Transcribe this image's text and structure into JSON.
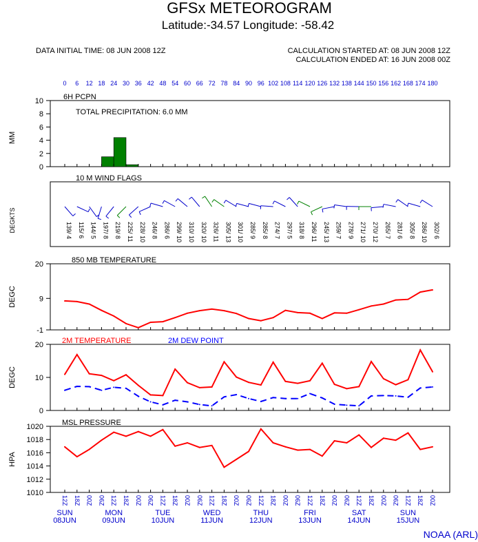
{
  "title": "GFSx METEOROGRAM",
  "subtitle": "Latitude:-34.57 Longitude: -58.42",
  "header": {
    "init": "DATA INITIAL TIME: 08 JUN 2008 12Z",
    "calc_start": "CALCULATION STARTED AT: 08 JUN 2008 12Z",
    "calc_end": "CALCULATION ENDED AT: 16 JUN 2008 00Z"
  },
  "footer": {
    "credit": "NOAA (ARL)"
  },
  "colors": {
    "temp": "#ff0000",
    "dew": "#0000ff",
    "precip": "#008000",
    "hour_labels": "#0000cc"
  },
  "chart_data": [
    {
      "type": "bar",
      "panel": "precipitation",
      "title": "6H PCPN",
      "annotation": "TOTAL PRECIPITATION:   6.0 MM",
      "ylabel": "MM",
      "ylim": [
        0,
        10
      ],
      "yticks": [
        0,
        2,
        4,
        6,
        8,
        10
      ],
      "x": [
        24,
        30,
        36
      ],
      "values": [
        1.5,
        4.4,
        0.3
      ]
    },
    {
      "type": "table",
      "panel": "wind",
      "title": "10 M  WIND FLAGS",
      "ylabel": "DEGKTS",
      "values": [
        "139/ 4",
        "115/ 6",
        "144/ 5",
        "197/ 8",
        "219/ 8",
        "225/ 11",
        "228/ 10",
        "246/ 8",
        "286/ 6",
        "299/ 10",
        "310/ 10",
        "320/ 10",
        "326/ 11",
        "305/ 13",
        "301/ 10",
        "285/ 9",
        "285/ 8",
        "274/ 7",
        "297/ 5",
        "318/ 8",
        "296/ 11",
        "245/ 13",
        "259/ 7",
        "278/ 9",
        "271/ 10",
        "270/ 12",
        "265/ 7",
        "281/ 6",
        "305/ 8",
        "286/ 10",
        "302/ 6"
      ]
    },
    {
      "type": "line",
      "panel": "temp850",
      "title": "850 MB  TEMPERATURE",
      "ylabel": "DEGC",
      "ylim": [
        -1,
        20
      ],
      "yticks": [
        -1,
        9,
        20
      ],
      "series": [
        {
          "values": [
            8.2,
            8.0,
            7.2,
            5.2,
            3.4,
            1.0,
            -0.3,
            1.4,
            1.6,
            2.9,
            4.3,
            5.1,
            5.6,
            5.1,
            4.2,
            2.6,
            1.9,
            2.9,
            5.2,
            4.5,
            4.3,
            2.6,
            4.4,
            4.3,
            5.4,
            6.6,
            7.2,
            8.5,
            8.7,
            11.0,
            11.7
          ]
        }
      ]
    },
    {
      "type": "line",
      "panel": "temp2m",
      "ylabel": "DEGC",
      "ylim": [
        0,
        20
      ],
      "yticks": [
        0,
        10,
        20
      ],
      "series": [
        {
          "name": "2M TEMPERATURE",
          "values": [
            10.9,
            16.9,
            11.1,
            10.6,
            9.0,
            10.8,
            7.6,
            4.7,
            4.5,
            12.5,
            8.4,
            6.9,
            7.1,
            14.7,
            10.1,
            8.5,
            7.7,
            14.6,
            8.8,
            8.2,
            9.0,
            14.3,
            7.9,
            6.6,
            7.2,
            14.8,
            9.6,
            7.8,
            9.3,
            18.3,
            11.7
          ]
        },
        {
          "name": "2M   DEW POINT",
          "values": [
            6.1,
            7.3,
            7.2,
            6.1,
            7.0,
            6.7,
            4.3,
            2.6,
            1.7,
            3.1,
            2.6,
            1.8,
            1.4,
            4.1,
            4.8,
            3.6,
            2.7,
            3.9,
            3.6,
            3.6,
            5.1,
            3.8,
            1.9,
            1.6,
            1.4,
            4.4,
            4.5,
            4.4,
            4.0,
            6.8,
            7.1
          ]
        }
      ]
    },
    {
      "type": "line",
      "panel": "pressure",
      "title": "MSL PRESSURE",
      "ylabel": "HPA",
      "ylim": [
        1010,
        1020
      ],
      "yticks": [
        1010,
        1012,
        1014,
        1016,
        1018,
        1020
      ],
      "series": [
        {
          "values": [
            1016.9,
            1015.4,
            1016.5,
            1017.9,
            1019.1,
            1018.5,
            1019.2,
            1018.5,
            1019.5,
            1017.0,
            1017.5,
            1016.8,
            1017.1,
            1013.8,
            1015.0,
            1016.2,
            1019.6,
            1017.5,
            1016.9,
            1016.4,
            1016.5,
            1015.5,
            1017.8,
            1017.5,
            1018.7,
            1016.8,
            1018.2,
            1017.9,
            1019.0,
            1016.5,
            1016.9
          ]
        }
      ]
    }
  ],
  "axis": {
    "hours": [
      "0",
      "6",
      "12",
      "18",
      "24",
      "30",
      "36",
      "42",
      "48",
      "54",
      "60",
      "66",
      "72",
      "78",
      "84",
      "90",
      "96",
      "102",
      "108",
      "114",
      "120",
      "126",
      "132",
      "138",
      "144",
      "150",
      "156",
      "162",
      "168",
      "174",
      "180"
    ],
    "times": [
      "12Z",
      "18Z",
      "00Z",
      "06Z",
      "12Z",
      "18Z",
      "00Z",
      "06Z",
      "12Z",
      "18Z",
      "00Z",
      "06Z",
      "12Z",
      "18Z",
      "00Z",
      "06Z",
      "12Z",
      "18Z",
      "00Z",
      "06Z",
      "12Z",
      "18Z",
      "00Z",
      "06Z",
      "12Z",
      "18Z",
      "00Z",
      "06Z",
      "12Z",
      "18Z",
      "00Z"
    ],
    "days": [
      {
        "day": "SUN",
        "date": "08JUN"
      },
      {
        "day": "MON",
        "date": "09JUN"
      },
      {
        "day": "TUE",
        "date": "10JUN"
      },
      {
        "day": "WED",
        "date": "11JUN"
      },
      {
        "day": "THU",
        "date": "12JUN"
      },
      {
        "day": "FRI",
        "date": "13JUN"
      },
      {
        "day": "SAT",
        "date": "14JUN"
      },
      {
        "day": "SUN",
        "date": "15JUN"
      }
    ]
  }
}
